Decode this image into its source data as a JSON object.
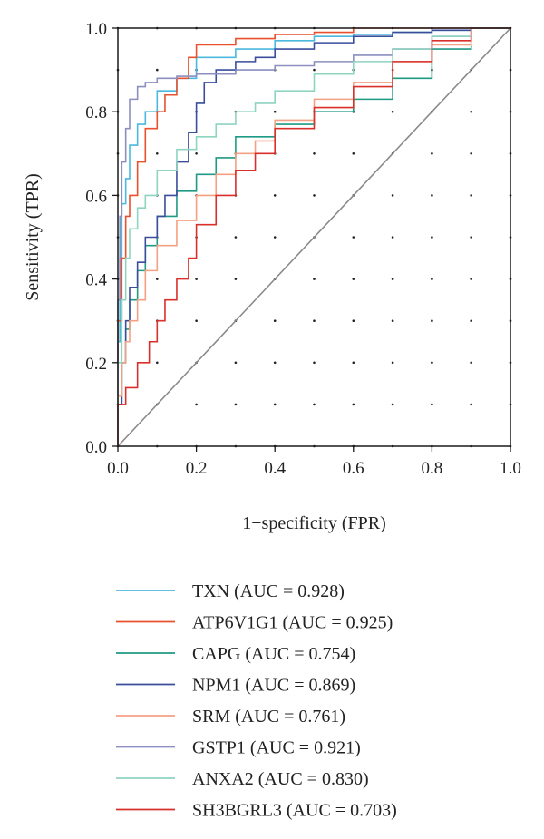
{
  "chart_data": {
    "type": "line",
    "xlabel": "1−specificity (FPR)",
    "ylabel": "Sensitivity (TPR)",
    "xlim": [
      0,
      1
    ],
    "ylim": [
      0,
      1
    ],
    "x_ticks": [
      "0.0",
      "0.2",
      "0.4",
      "0.6",
      "0.8",
      "1.0"
    ],
    "y_ticks": [
      "0.0",
      "0.2",
      "0.4",
      "0.6",
      "0.8",
      "1.0"
    ],
    "grid": "dotted",
    "legend_position": "bottom",
    "reference_line": {
      "x": [
        0,
        1
      ],
      "y": [
        0,
        1
      ],
      "color": "#8a8a8a"
    },
    "series": [
      {
        "name": "TXN (AUC = 0.928)",
        "color": "#4bb8de",
        "x": [
          0,
          0.005,
          0.01,
          0.02,
          0.03,
          0.05,
          0.07,
          0.1,
          0.15,
          0.2,
          0.3,
          0.4,
          0.5,
          0.6,
          0.7,
          0.8,
          0.9,
          1.0
        ],
        "y": [
          0,
          0.25,
          0.45,
          0.58,
          0.64,
          0.72,
          0.77,
          0.8,
          0.85,
          0.88,
          0.93,
          0.95,
          0.97,
          0.98,
          0.985,
          0.99,
          0.995,
          1.0
        ]
      },
      {
        "name": "ATP6V1G1 (AUC = 0.925)",
        "color": "#e8502e",
        "x": [
          0,
          0.01,
          0.02,
          0.03,
          0.05,
          0.07,
          0.1,
          0.12,
          0.15,
          0.18,
          0.2,
          0.3,
          0.4,
          0.5,
          0.6,
          0.8,
          1.0
        ],
        "y": [
          0,
          0.3,
          0.45,
          0.55,
          0.6,
          0.68,
          0.76,
          0.8,
          0.84,
          0.88,
          0.93,
          0.96,
          0.975,
          0.985,
          0.99,
          1.0,
          1.0
        ]
      },
      {
        "name": "CAPG (AUC = 0.754)",
        "color": "#1f9a84",
        "x": [
          0,
          0.01,
          0.02,
          0.03,
          0.05,
          0.07,
          0.1,
          0.15,
          0.2,
          0.25,
          0.3,
          0.4,
          0.5,
          0.6,
          0.7,
          0.8,
          0.9,
          1.0
        ],
        "y": [
          0,
          0.1,
          0.2,
          0.28,
          0.35,
          0.42,
          0.48,
          0.55,
          0.61,
          0.65,
          0.69,
          0.74,
          0.77,
          0.8,
          0.83,
          0.88,
          0.95,
          1.0
        ]
      },
      {
        "name": "NPM1 (AUC = 0.869)",
        "color": "#3a4e9c",
        "x": [
          0,
          0.01,
          0.02,
          0.03,
          0.05,
          0.07,
          0.1,
          0.12,
          0.15,
          0.18,
          0.2,
          0.22,
          0.25,
          0.3,
          0.35,
          0.4,
          0.5,
          0.6,
          0.7,
          0.8,
          0.9,
          1.0
        ],
        "y": [
          0,
          0.1,
          0.2,
          0.3,
          0.38,
          0.44,
          0.5,
          0.55,
          0.6,
          0.68,
          0.75,
          0.82,
          0.87,
          0.9,
          0.92,
          0.93,
          0.95,
          0.965,
          0.98,
          0.99,
          0.995,
          1.0
        ]
      },
      {
        "name": "SRM (AUC = 0.761)",
        "color": "#f4a082",
        "x": [
          0,
          0.01,
          0.02,
          0.03,
          0.05,
          0.07,
          0.1,
          0.15,
          0.2,
          0.25,
          0.3,
          0.35,
          0.4,
          0.5,
          0.6,
          0.7,
          0.8,
          0.9,
          1.0
        ],
        "y": [
          0,
          0.12,
          0.2,
          0.25,
          0.3,
          0.35,
          0.42,
          0.48,
          0.54,
          0.6,
          0.65,
          0.7,
          0.73,
          0.78,
          0.83,
          0.87,
          0.92,
          0.96,
          1.0
        ]
      },
      {
        "name": "GSTP1 (AUC = 0.921)",
        "color": "#8c8fc0",
        "x": [
          0,
          0.005,
          0.01,
          0.02,
          0.03,
          0.05,
          0.07,
          0.1,
          0.15,
          0.2,
          0.3,
          0.4,
          0.5,
          0.6,
          0.7,
          0.8,
          0.9,
          1.0
        ],
        "y": [
          0,
          0.35,
          0.55,
          0.68,
          0.76,
          0.83,
          0.86,
          0.87,
          0.88,
          0.885,
          0.89,
          0.9,
          0.91,
          0.92,
          0.935,
          0.95,
          0.98,
          1.0
        ]
      },
      {
        "name": "ANXA2 (AUC = 0.830)",
        "color": "#8fd3c1",
        "x": [
          0,
          0.01,
          0.02,
          0.03,
          0.05,
          0.07,
          0.1,
          0.15,
          0.2,
          0.25,
          0.3,
          0.35,
          0.4,
          0.5,
          0.6,
          0.7,
          0.8,
          0.9,
          1.0
        ],
        "y": [
          0,
          0.2,
          0.35,
          0.45,
          0.52,
          0.57,
          0.6,
          0.66,
          0.71,
          0.74,
          0.77,
          0.8,
          0.82,
          0.85,
          0.89,
          0.92,
          0.95,
          0.98,
          1.0
        ]
      },
      {
        "name": "SH3BGRL3 (AUC = 0.703)",
        "color": "#d9302b",
        "x": [
          0,
          0.02,
          0.05,
          0.08,
          0.1,
          0.12,
          0.15,
          0.18,
          0.2,
          0.25,
          0.3,
          0.35,
          0.4,
          0.5,
          0.6,
          0.7,
          0.8,
          0.9,
          1.0
        ],
        "y": [
          0,
          0.1,
          0.14,
          0.2,
          0.25,
          0.3,
          0.35,
          0.4,
          0.45,
          0.53,
          0.6,
          0.66,
          0.7,
          0.76,
          0.81,
          0.86,
          0.92,
          0.97,
          1.0
        ]
      }
    ]
  }
}
